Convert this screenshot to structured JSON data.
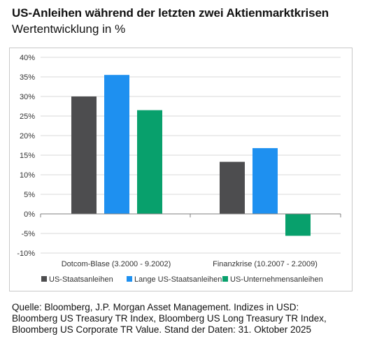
{
  "title": "US-Anleihen während der letzten zwei Aktienmarktkrisen",
  "subtitle": "Wertentwicklung in %",
  "source": [
    "Quelle: Bloomberg, J.P. Morgan Asset Management. Indizes in USD:",
    "Bloomberg US Treasury TR Index, Bloomberg US Long Treasury TR Index,",
    "Bloomberg US Corporate TR Value. Stand der Daten: 31. Oktober 2025"
  ],
  "chart_data": {
    "type": "bar",
    "categories": [
      "Dotcom-Blase (3.2000 - 9.2002)",
      "Finanzkrise (10.2007 - 2.2009)"
    ],
    "series": [
      {
        "name": "US-Staatsanleihen",
        "values": [
          30.0,
          13.3
        ],
        "color": "#4d4d4f"
      },
      {
        "name": "Lange US-Staatsanleihen",
        "values": [
          35.5,
          16.8
        ],
        "color": "#1e90f0"
      },
      {
        "name": "US-Unternehmensanleihen",
        "values": [
          26.5,
          -5.6
        ],
        "color": "#08a06c"
      }
    ],
    "ylim": [
      -10,
      40
    ],
    "yticks": [
      "-10%",
      "-5%",
      "0%",
      "5%",
      "10%",
      "15%",
      "20%",
      "25%",
      "30%",
      "35%",
      "40%"
    ],
    "ytick_values": [
      -10,
      -5,
      0,
      5,
      10,
      15,
      20,
      25,
      30,
      35,
      40
    ],
    "grid": true,
    "legend": "bottom"
  }
}
